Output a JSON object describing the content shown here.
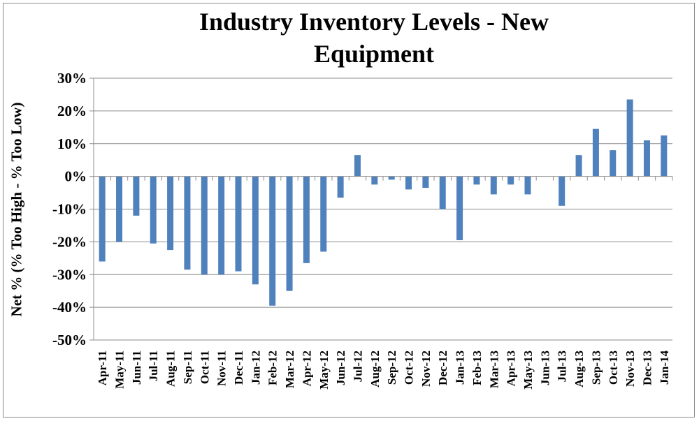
{
  "chart_data": {
    "type": "bar",
    "title": [
      "Industry Inventory Levels - New",
      "Equipment"
    ],
    "ylabel": "Net % (% Too High - % Too Low)",
    "xlabel": "",
    "ylim": [
      -50,
      30
    ],
    "yticks": [
      30,
      20,
      10,
      0,
      -10,
      -20,
      -30,
      -40,
      -50
    ],
    "ytick_labels": [
      "30%",
      "20%",
      "10%",
      "0%",
      "-10%",
      "-20%",
      "-30%",
      "-40%",
      "-50%"
    ],
    "grid": true,
    "bar_color": "#4f81bd",
    "categories": [
      "Apr-11",
      "May-11",
      "Jun-11",
      "Jul-11",
      "Aug-11",
      "Sep-11",
      "Oct-11",
      "Nov-11",
      "Dec-11",
      "Jan-12",
      "Feb-12",
      "Mar-12",
      "Apr-12",
      "May-12",
      "Jun-12",
      "Jul-12",
      "Aug-12",
      "Sep-12",
      "Oct-12",
      "Nov-12",
      "Dec-12",
      "Jan-13",
      "Feb-13",
      "Mar-13",
      "Apr-13",
      "May-13",
      "Jun-13",
      "Jul-13",
      "Aug-13",
      "Sep-13",
      "Oct-13",
      "Nov-13",
      "Dec-13",
      "Jan-14"
    ],
    "values": [
      -26,
      -20,
      -12,
      -20.5,
      -22.5,
      -28.5,
      -30,
      -30,
      -29,
      -33,
      -39.5,
      -35,
      -26.5,
      -23,
      -6.5,
      6.5,
      -2.5,
      -1,
      -4,
      -3.5,
      -10,
      -19.5,
      -2.5,
      -5.5,
      -2.5,
      -5.5,
      0,
      -9,
      6.5,
      14.5,
      8,
      23.5,
      11,
      12.5
    ]
  }
}
